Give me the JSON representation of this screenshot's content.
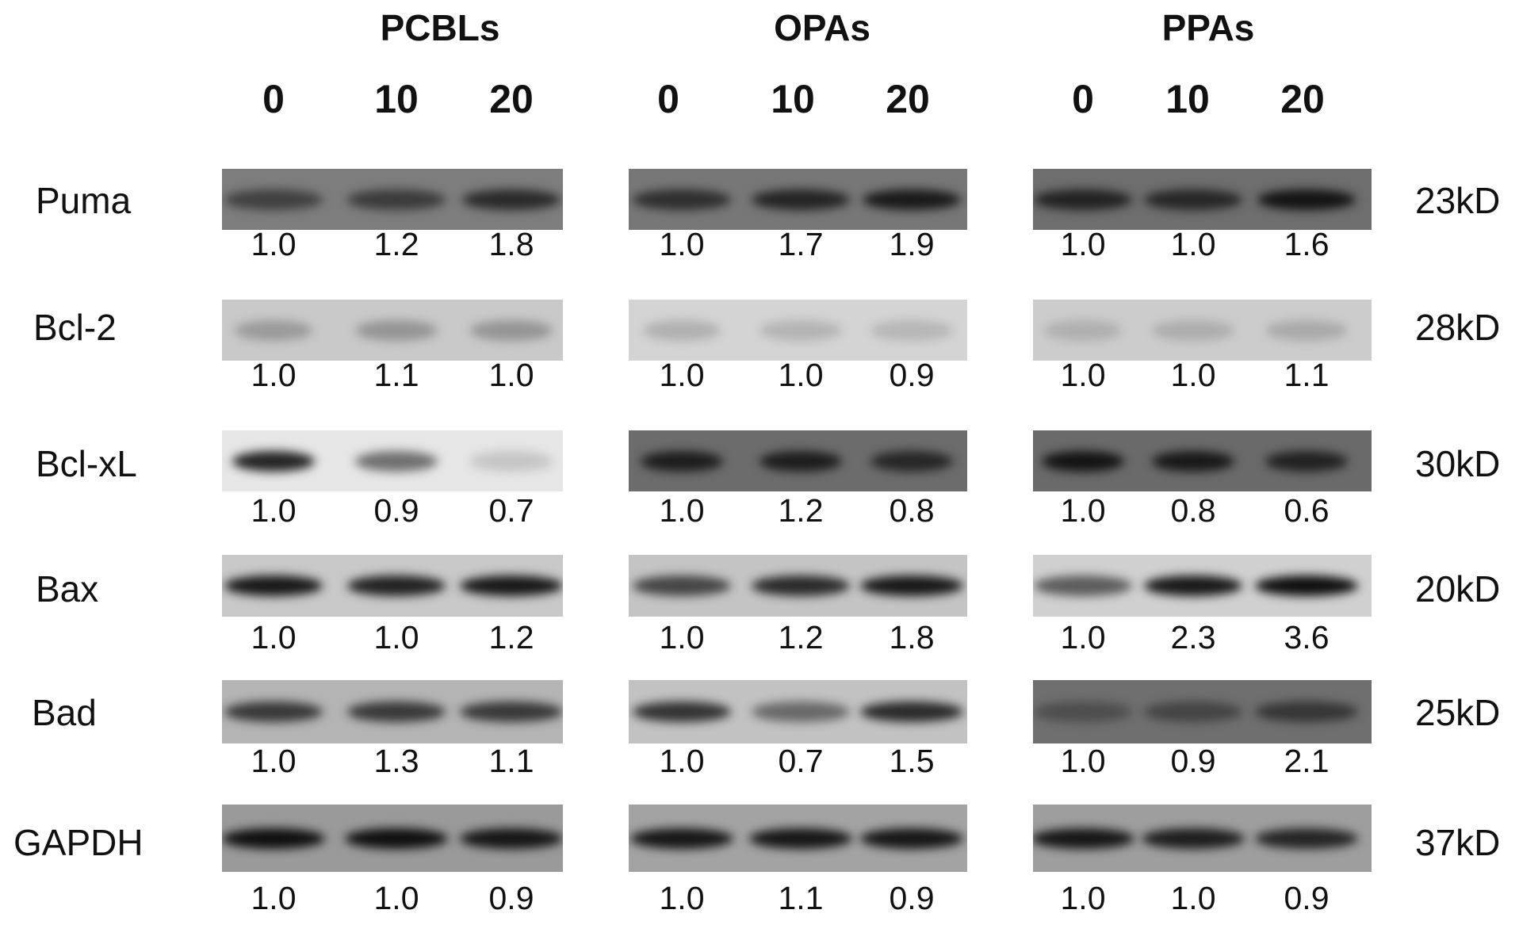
{
  "groups": [
    {
      "title": "PCBLs",
      "doses": [
        "0",
        "10",
        "20"
      ]
    },
    {
      "title": "OPAs",
      "doses": [
        "0",
        "10",
        "20"
      ]
    },
    {
      "title": "PPAs",
      "doses": [
        "0",
        "10",
        "20"
      ]
    }
  ],
  "rows": [
    {
      "protein": "Puma",
      "mw": "23kD",
      "ratios": [
        [
          "1.0",
          "1.2",
          "1.8"
        ],
        [
          "1.0",
          "1.7",
          "1.9"
        ],
        [
          "1.0",
          "1.0",
          "1.6"
        ]
      ]
    },
    {
      "protein": "Bcl-2",
      "mw": "28kD",
      "ratios": [
        [
          "1.0",
          "1.1",
          "1.0"
        ],
        [
          "1.0",
          "1.0",
          "0.9"
        ],
        [
          "1.0",
          "1.0",
          "1.1"
        ]
      ]
    },
    {
      "protein": "Bcl-xL",
      "mw": "30kD",
      "ratios": [
        [
          "1.0",
          "0.9",
          "0.7"
        ],
        [
          "1.0",
          "1.2",
          "0.8"
        ],
        [
          "1.0",
          "0.8",
          "0.6"
        ]
      ]
    },
    {
      "protein": "Bax",
      "mw": "20kD",
      "ratios": [
        [
          "1.0",
          "1.0",
          "1.2"
        ],
        [
          "1.0",
          "1.2",
          "1.8"
        ],
        [
          "1.0",
          "2.3",
          "3.6"
        ]
      ]
    },
    {
      "protein": "Bad",
      "mw": "25kD",
      "ratios": [
        [
          "1.0",
          "1.3",
          "1.1"
        ],
        [
          "1.0",
          "0.7",
          "1.5"
        ],
        [
          "1.0",
          "0.9",
          "2.1"
        ]
      ]
    },
    {
      "protein": "GAPDH",
      "mw": "37kD",
      "ratios": [
        [
          "1.0",
          "1.0",
          "0.9"
        ],
        [
          "1.0",
          "1.1",
          "0.9"
        ],
        [
          "1.0",
          "1.0",
          "0.9"
        ]
      ]
    }
  ]
}
